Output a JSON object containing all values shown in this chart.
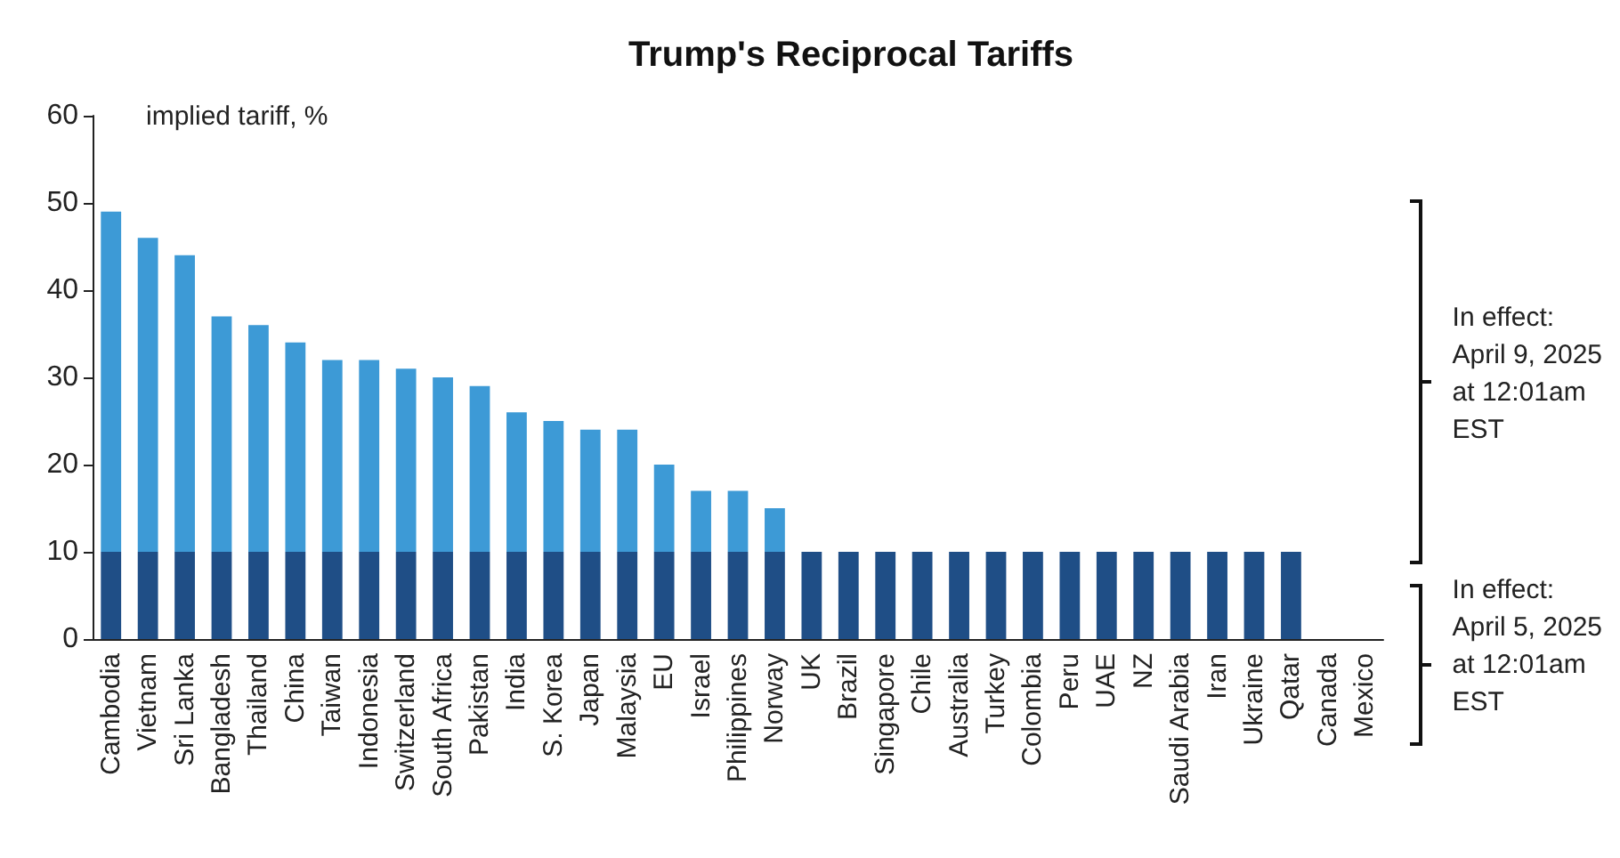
{
  "chart_data": {
    "type": "bar",
    "title": "Trump's Reciprocal Tariffs",
    "ylabel": "implied tariff, %",
    "stacked": true,
    "categories": [
      "Cambodia",
      "Vietnam",
      "Sri Lanka",
      "Bangladesh",
      "Thailand",
      "China",
      "Taiwan",
      "Indonesia",
      "Switzerland",
      "South Africa",
      "Pakistan",
      "India",
      "S. Korea",
      "Japan",
      "Malaysia",
      "EU",
      "Israel",
      "Philippines",
      "Norway",
      "UK",
      "Brazil",
      "Singapore",
      "Chile",
      "Australia",
      "Turkey",
      "Colombia",
      "Peru",
      "UAE",
      "NZ",
      "Saudi Arabia",
      "Iran",
      "Ukraine",
      "Qatar",
      "Canada",
      "Mexico"
    ],
    "series": [
      {
        "color": "#1f4e86",
        "values": [
          10,
          10,
          10,
          10,
          10,
          10,
          10,
          10,
          10,
          10,
          10,
          10,
          10,
          10,
          10,
          10,
          10,
          10,
          10,
          10,
          10,
          10,
          10,
          10,
          10,
          10,
          10,
          10,
          10,
          10,
          10,
          10,
          10,
          0,
          0
        ]
      },
      {
        "color": "#3d9ad6",
        "values": [
          39,
          36,
          34,
          27,
          26,
          24,
          22,
          22,
          21,
          20,
          19,
          16,
          15,
          14,
          14,
          10,
          7,
          7,
          5,
          null,
          null,
          null,
          null,
          null,
          null,
          null,
          null,
          null,
          null,
          null,
          null,
          null,
          null,
          null,
          null
        ]
      }
    ],
    "ylim": [
      0,
      60
    ],
    "yticks": [
      0,
      10,
      20,
      30,
      40,
      50,
      60
    ],
    "grid": false,
    "annotations": [
      "In effect:\nApril 9, 2025\nat 12:01am\nEST",
      "In effect:\nApril 5, 2025\nat 12:01am\nEST"
    ]
  }
}
